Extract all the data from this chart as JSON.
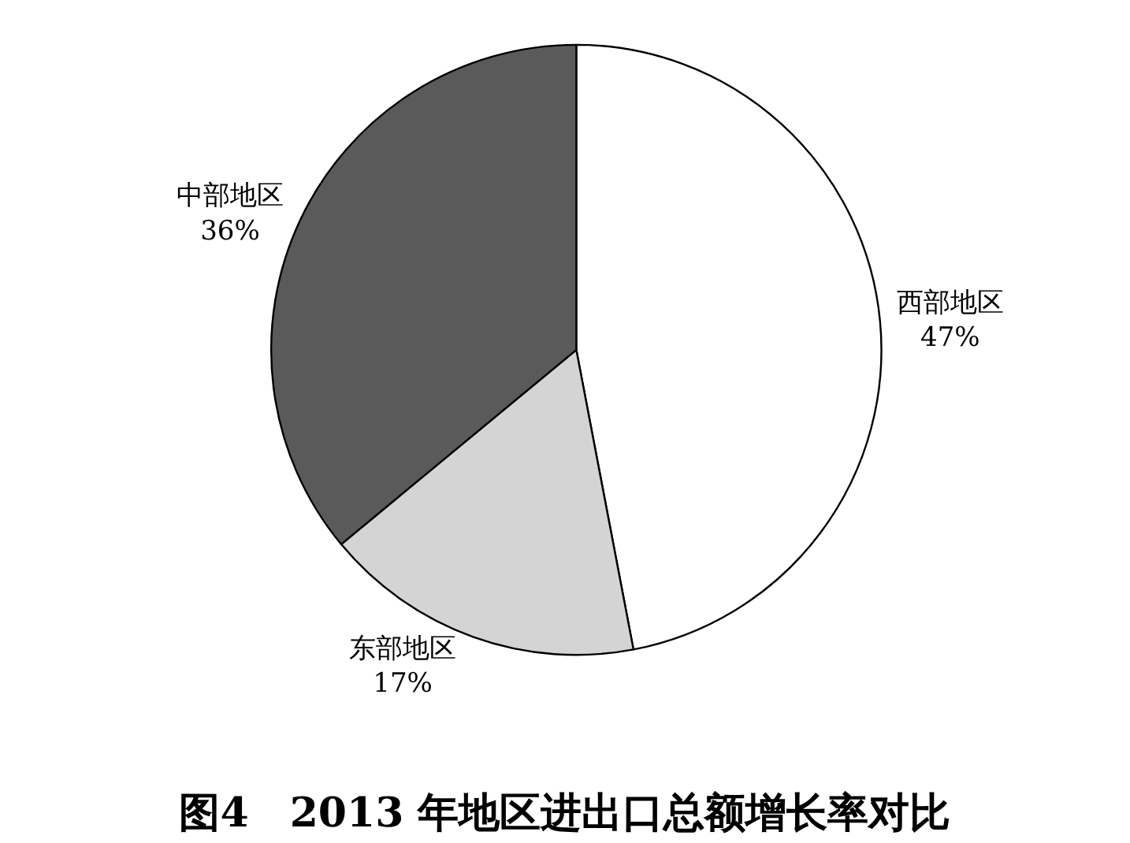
{
  "chart_data": {
    "type": "pie",
    "title": "图4　2013 年地区进出口总额增长率对比",
    "categories": [
      "西部地区",
      "东部地区",
      "中部地区"
    ],
    "values": [
      47,
      17,
      36
    ],
    "value_labels": [
      "47%",
      "17%",
      "36%"
    ],
    "colors": [
      "#ffffff",
      "#d4d4d4",
      "#5a5a5a"
    ]
  }
}
